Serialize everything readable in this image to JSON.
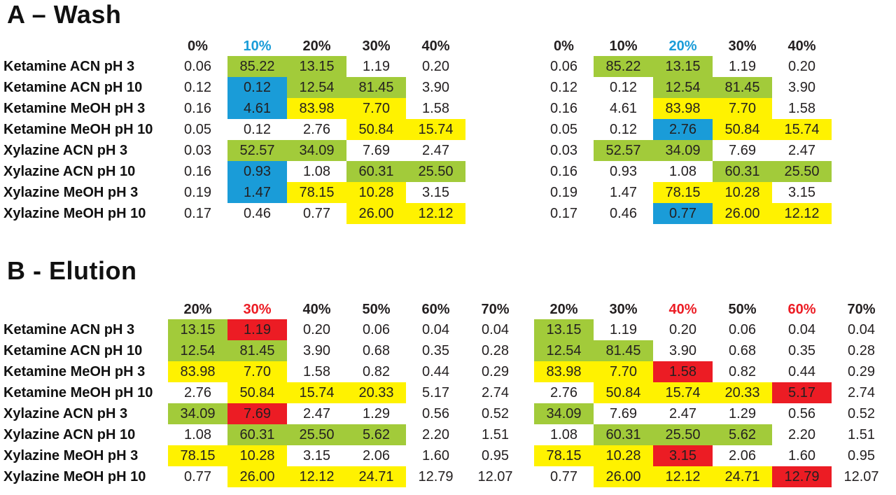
{
  "page": {
    "background": "#FFFFFF"
  },
  "colors": {
    "cell_green": "#A2CB3A",
    "cell_blue": "#1A9CD8",
    "cell_yellow": "#FFF200",
    "cell_red": "#EC1C24",
    "header_blue": "#1A9CD8",
    "header_red": "#EC1C24",
    "text": "#231F20"
  },
  "chart_data": [
    {
      "type": "heatmap",
      "title": "A – Wash",
      "row_labels": [
        "Ketamine ACN pH 3",
        "Ketamine ACN pH 10",
        "Ketamine MeOH pH 3",
        "Ketamine MeOH pH 10",
        "Xylazine ACN pH 3",
        "Xylazine ACN pH 10",
        "Xylazine MeOH pH 3",
        "Xylazine MeOH pH 10"
      ],
      "tables": [
        {
          "name": "wash-left",
          "has_labels": true,
          "columns": [
            "0%",
            "10%",
            "20%",
            "30%",
            "40%"
          ],
          "header_colors": [
            "black",
            "blue",
            "black",
            "black",
            "black"
          ],
          "values": [
            [
              "0.06",
              "85.22",
              "13.15",
              "1.19",
              "0.20"
            ],
            [
              "0.12",
              "0.12",
              "12.54",
              "81.45",
              "3.90"
            ],
            [
              "0.16",
              "4.61",
              "83.98",
              "7.70",
              "1.58"
            ],
            [
              "0.05",
              "0.12",
              "2.76",
              "50.84",
              "15.74"
            ],
            [
              "0.03",
              "52.57",
              "34.09",
              "7.69",
              "2.47"
            ],
            [
              "0.16",
              "0.93",
              "1.08",
              "60.31",
              "25.50"
            ],
            [
              "0.19",
              "1.47",
              "78.15",
              "10.28",
              "3.15"
            ],
            [
              "0.17",
              "0.46",
              "0.77",
              "26.00",
              "12.12"
            ]
          ],
          "cell_colors": [
            [
              "white",
              "green",
              "green",
              "white",
              "white"
            ],
            [
              "white",
              "blue",
              "green",
              "green",
              "white"
            ],
            [
              "white",
              "blue",
              "yellow",
              "yellow",
              "white"
            ],
            [
              "white",
              "white",
              "white",
              "yellow",
              "yellow"
            ],
            [
              "white",
              "green",
              "green",
              "white",
              "white"
            ],
            [
              "white",
              "blue",
              "white",
              "green",
              "green"
            ],
            [
              "white",
              "blue",
              "yellow",
              "yellow",
              "white"
            ],
            [
              "white",
              "white",
              "white",
              "yellow",
              "yellow"
            ]
          ]
        },
        {
          "name": "wash-right",
          "has_labels": false,
          "columns": [
            "0%",
            "10%",
            "20%",
            "30%",
            "40%"
          ],
          "header_colors": [
            "black",
            "black",
            "blue",
            "black",
            "black"
          ],
          "values": [
            [
              "0.06",
              "85.22",
              "13.15",
              "1.19",
              "0.20"
            ],
            [
              "0.12",
              "0.12",
              "12.54",
              "81.45",
              "3.90"
            ],
            [
              "0.16",
              "4.61",
              "83.98",
              "7.70",
              "1.58"
            ],
            [
              "0.05",
              "0.12",
              "2.76",
              "50.84",
              "15.74"
            ],
            [
              "0.03",
              "52.57",
              "34.09",
              "7.69",
              "2.47"
            ],
            [
              "0.16",
              "0.93",
              "1.08",
              "60.31",
              "25.50"
            ],
            [
              "0.19",
              "1.47",
              "78.15",
              "10.28",
              "3.15"
            ],
            [
              "0.17",
              "0.46",
              "0.77",
              "26.00",
              "12.12"
            ]
          ],
          "cell_colors": [
            [
              "white",
              "green",
              "green",
              "white",
              "white"
            ],
            [
              "white",
              "white",
              "green",
              "green",
              "white"
            ],
            [
              "white",
              "white",
              "yellow",
              "yellow",
              "white"
            ],
            [
              "white",
              "white",
              "blue",
              "yellow",
              "yellow"
            ],
            [
              "white",
              "green",
              "green",
              "white",
              "white"
            ],
            [
              "white",
              "white",
              "white",
              "green",
              "green"
            ],
            [
              "white",
              "white",
              "yellow",
              "yellow",
              "white"
            ],
            [
              "white",
              "white",
              "blue",
              "yellow",
              "yellow"
            ]
          ]
        }
      ]
    },
    {
      "type": "heatmap",
      "title": "B - Elution",
      "row_labels": [
        "Ketamine ACN pH 3",
        "Ketamine ACN pH 10",
        "Ketamine MeOH pH 3",
        "Ketamine MeOH pH 10",
        "Xylazine ACN pH 3",
        "Xylazine ACN pH 10",
        "Xylazine MeOH pH 3",
        "Xylazine MeOH pH 10"
      ],
      "tables": [
        {
          "name": "elution-left",
          "has_labels": true,
          "columns": [
            "20%",
            "30%",
            "40%",
            "50%",
            "60%",
            "70%"
          ],
          "header_colors": [
            "black",
            "red",
            "black",
            "black",
            "black",
            "black"
          ],
          "values": [
            [
              "13.15",
              "1.19",
              "0.20",
              "0.06",
              "0.04",
              "0.04"
            ],
            [
              "12.54",
              "81.45",
              "3.90",
              "0.68",
              "0.35",
              "0.28"
            ],
            [
              "83.98",
              "7.70",
              "1.58",
              "0.82",
              "0.44",
              "0.29"
            ],
            [
              "2.76",
              "50.84",
              "15.74",
              "20.33",
              "5.17",
              "2.74"
            ],
            [
              "34.09",
              "7.69",
              "2.47",
              "1.29",
              "0.56",
              "0.52"
            ],
            [
              "1.08",
              "60.31",
              "25.50",
              "5.62",
              "2.20",
              "1.51"
            ],
            [
              "78.15",
              "10.28",
              "3.15",
              "2.06",
              "1.60",
              "0.95"
            ],
            [
              "0.77",
              "26.00",
              "12.12",
              "24.71",
              "12.79",
              "12.07"
            ]
          ],
          "cell_colors": [
            [
              "green",
              "red",
              "white",
              "white",
              "white",
              "white"
            ],
            [
              "green",
              "green",
              "white",
              "white",
              "white",
              "white"
            ],
            [
              "yellow",
              "yellow",
              "white",
              "white",
              "white",
              "white"
            ],
            [
              "white",
              "yellow",
              "yellow",
              "yellow",
              "white",
              "white"
            ],
            [
              "green",
              "red",
              "white",
              "white",
              "white",
              "white"
            ],
            [
              "white",
              "green",
              "green",
              "green",
              "white",
              "white"
            ],
            [
              "yellow",
              "yellow",
              "white",
              "white",
              "white",
              "white"
            ],
            [
              "white",
              "yellow",
              "yellow",
              "yellow",
              "white",
              "white"
            ]
          ]
        },
        {
          "name": "elution-right",
          "has_labels": false,
          "columns": [
            "20%",
            "30%",
            "40%",
            "50%",
            "60%",
            "70%"
          ],
          "header_colors": [
            "black",
            "black",
            "red",
            "black",
            "red",
            "black"
          ],
          "values": [
            [
              "13.15",
              "1.19",
              "0.20",
              "0.06",
              "0.04",
              "0.04"
            ],
            [
              "12.54",
              "81.45",
              "3.90",
              "0.68",
              "0.35",
              "0.28"
            ],
            [
              "83.98",
              "7.70",
              "1.58",
              "0.82",
              "0.44",
              "0.29"
            ],
            [
              "2.76",
              "50.84",
              "15.74",
              "20.33",
              "5.17",
              "2.74"
            ],
            [
              "34.09",
              "7.69",
              "2.47",
              "1.29",
              "0.56",
              "0.52"
            ],
            [
              "1.08",
              "60.31",
              "25.50",
              "5.62",
              "2.20",
              "1.51"
            ],
            [
              "78.15",
              "10.28",
              "3.15",
              "2.06",
              "1.60",
              "0.95"
            ],
            [
              "0.77",
              "26.00",
              "12.12",
              "24.71",
              "12.79",
              "12.07"
            ]
          ],
          "cell_colors": [
            [
              "green",
              "white",
              "white",
              "white",
              "white",
              "white"
            ],
            [
              "green",
              "green",
              "white",
              "white",
              "white",
              "white"
            ],
            [
              "yellow",
              "yellow",
              "red",
              "white",
              "white",
              "white"
            ],
            [
              "white",
              "yellow",
              "yellow",
              "yellow",
              "red",
              "white"
            ],
            [
              "green",
              "white",
              "white",
              "white",
              "white",
              "white"
            ],
            [
              "white",
              "green",
              "green",
              "green",
              "white",
              "white"
            ],
            [
              "yellow",
              "yellow",
              "red",
              "white",
              "white",
              "white"
            ],
            [
              "white",
              "yellow",
              "yellow",
              "yellow",
              "red",
              "white"
            ]
          ]
        }
      ]
    }
  ]
}
